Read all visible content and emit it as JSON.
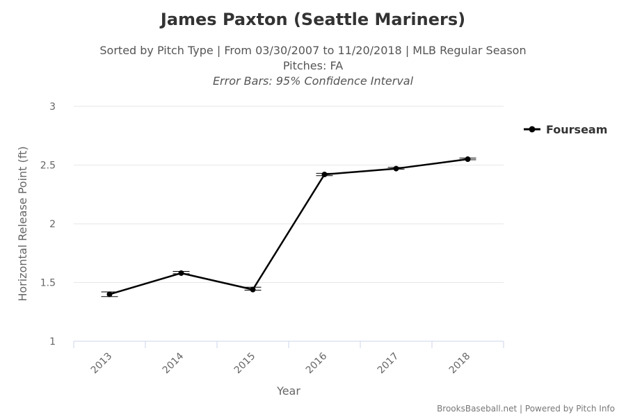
{
  "title": "James Paxton (Seattle Mariners)",
  "subtitle_lines": [
    "Sorted by Pitch Type | From 03/30/2007 to 11/20/2018 | MLB Regular Season",
    "Pitches: FA",
    "Error Bars: 95% Confidence Interval"
  ],
  "credits": "BrooksBaseball.net | Powered by Pitch Info",
  "chart_data": {
    "type": "line",
    "title": "James Paxton (Seattle Mariners)",
    "xlabel": "Year",
    "ylabel": "Horizontal Release Point (ft)",
    "categories": [
      "2013",
      "2014",
      "2015",
      "2016",
      "2017",
      "2018"
    ],
    "ylim": [
      1,
      3
    ],
    "y_ticks": [
      1,
      1.5,
      2,
      2.5,
      3
    ],
    "y_tick_labels": [
      "1",
      "1.5",
      "2",
      "2.5",
      "3"
    ],
    "grid": true,
    "legend_position": "right",
    "series": [
      {
        "name": "Fourseam",
        "color": "#000000",
        "values": [
          1.4,
          1.58,
          1.44,
          2.42,
          2.47,
          2.55
        ],
        "error_low": [
          1.38,
          1.575,
          1.435,
          2.41,
          2.465,
          2.545
        ],
        "error_high": [
          1.42,
          1.595,
          1.46,
          2.43,
          2.48,
          2.56
        ]
      }
    ]
  }
}
